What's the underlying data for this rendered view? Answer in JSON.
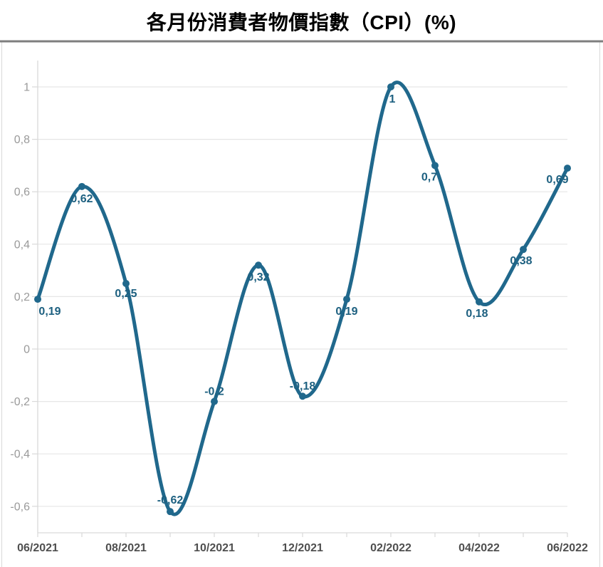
{
  "title": "各月份消費者物價指數（CPI）(%)",
  "chart_data": {
    "type": "line",
    "title": "各月份消費者物價指數（CPI）(%)",
    "x": [
      "06/2021",
      "07/2021",
      "08/2021",
      "09/2021",
      "10/2021",
      "11/2021",
      "12/2021",
      "01/2022",
      "02/2022",
      "03/2022",
      "04/2022",
      "05/2022",
      "06/2022"
    ],
    "values": [
      0.19,
      0.62,
      0.25,
      -0.62,
      -0.2,
      0.32,
      -0.18,
      0.19,
      1,
      0.7,
      0.18,
      0.38,
      0.69
    ],
    "point_labels": [
      "0,19",
      "0,62",
      "0,25",
      "-0,62",
      "-0,2",
      "0,32",
      "-0,18",
      "0,19",
      "1",
      "0,7",
      "0,18",
      "0,38",
      "0,69"
    ],
    "x_tick_labels": [
      "06/2021",
      "08/2021",
      "10/2021",
      "12/2021",
      "02/2022",
      "04/2022",
      "06/2022"
    ],
    "y_tick_labels": [
      "1",
      "0,8",
      "0,6",
      "0,4",
      "0,2",
      "0",
      "-0,2",
      "-0,4",
      "-0,6"
    ],
    "y_tick_values": [
      1,
      0.8,
      0.6,
      0.4,
      0.2,
      0,
      -0.2,
      -0.4,
      -0.6
    ],
    "ylim": [
      -0.72,
      1.1
    ],
    "xlabel": "",
    "ylabel": "",
    "legend": "none",
    "grid": "horizontal",
    "curve": "smooth-spline",
    "colors": {
      "line": "#20688c",
      "marker": "#20688c",
      "point_label": "#1d6080",
      "y_tick_label": "#9a9a9a",
      "x_tick_label": "#4f4f4f",
      "gridline": "#e6e6e6",
      "axis_line": "#d9d9d9",
      "title_rule": "#7e7e7e",
      "frame_border": "#d9d9d9",
      "title_text": "#000000",
      "background": "#ffffff"
    }
  }
}
